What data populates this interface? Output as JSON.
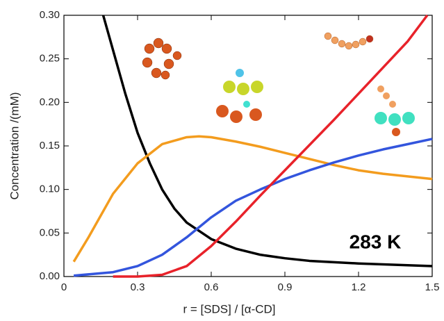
{
  "chart_data": {
    "type": "line",
    "x_label": "r = [SDS] / [α-CD]",
    "y_label": "Concentration /(mM)",
    "annotation": "283 K",
    "xlim": [
      0,
      1.5
    ],
    "ylim": [
      0,
      0.3
    ],
    "xticks": [
      0,
      0.3,
      0.6,
      0.9,
      1.2,
      1.5
    ],
    "yticks": [
      {
        "value": 0,
        "label": "0.00"
      },
      {
        "value": 0.05,
        "label": "0.05"
      },
      {
        "value": 0.1,
        "label": "0.10"
      },
      {
        "value": 0.15,
        "label": "0.15"
      },
      {
        "value": 0.2,
        "label": "0.20"
      },
      {
        "value": 0.25,
        "label": "0.25"
      },
      {
        "value": 0.3,
        "label": "0.30"
      }
    ],
    "series": [
      {
        "color": "#000000",
        "x": [
          0.16,
          0.2,
          0.25,
          0.3,
          0.35,
          0.4,
          0.45,
          0.5,
          0.6,
          0.7,
          0.8,
          0.9,
          1.0,
          1.2,
          1.5
        ],
        "values": [
          0.3,
          0.26,
          0.21,
          0.165,
          0.13,
          0.1,
          0.078,
          0.062,
          0.043,
          0.032,
          0.025,
          0.021,
          0.018,
          0.015,
          0.012
        ]
      },
      {
        "color": "#f39c1e",
        "x": [
          0.04,
          0.1,
          0.2,
          0.3,
          0.4,
          0.5,
          0.55,
          0.6,
          0.7,
          0.8,
          0.9,
          1.0,
          1.1,
          1.2,
          1.3,
          1.5
        ],
        "values": [
          0.017,
          0.045,
          0.095,
          0.13,
          0.152,
          0.16,
          0.161,
          0.16,
          0.155,
          0.149,
          0.142,
          0.135,
          0.128,
          0.122,
          0.118,
          0.112
        ]
      },
      {
        "color": "#3355dd",
        "x": [
          0.04,
          0.2,
          0.3,
          0.4,
          0.5,
          0.6,
          0.7,
          0.8,
          0.9,
          1.0,
          1.1,
          1.2,
          1.3,
          1.4,
          1.5
        ],
        "values": [
          0.001,
          0.005,
          0.012,
          0.025,
          0.045,
          0.068,
          0.087,
          0.1,
          0.112,
          0.122,
          0.131,
          0.139,
          0.146,
          0.152,
          0.158
        ]
      },
      {
        "color": "#e8222a",
        "x": [
          0.2,
          0.3,
          0.4,
          0.5,
          0.6,
          0.7,
          0.8,
          0.9,
          1.0,
          1.1,
          1.2,
          1.3,
          1.4,
          1.48
        ],
        "values": [
          0,
          0,
          0.002,
          0.012,
          0.035,
          0.063,
          0.093,
          0.122,
          0.151,
          0.18,
          0.21,
          0.24,
          0.27,
          0.3
        ]
      }
    ]
  }
}
